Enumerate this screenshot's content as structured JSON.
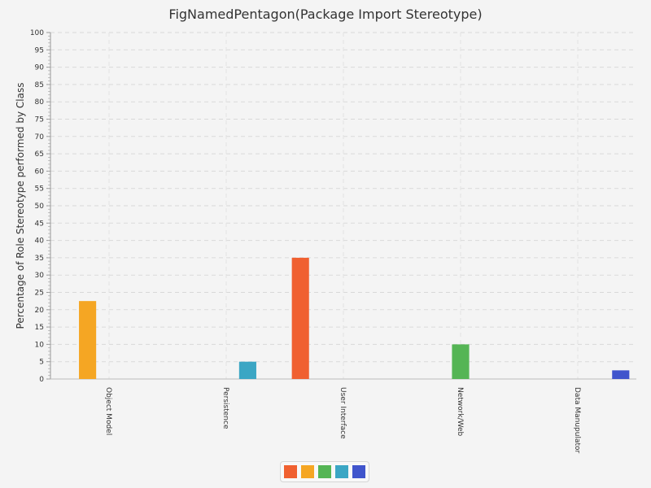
{
  "chart_data": {
    "type": "bar",
    "title": "FigNamedPentagon(Package Import Stereotype)",
    "xlabel": "",
    "ylabel": "Percentage of Role Stereotype performed by Class",
    "ylim": [
      0,
      100
    ],
    "ytick_step": 5,
    "grid": true,
    "legend_position": "bottom-center",
    "categories": [
      "Object Model",
      "Persistence",
      "User Interface",
      "Network/Web",
      "Data Manupulator"
    ],
    "series": [
      {
        "color": "#f06030",
        "values": [
          0,
          0,
          35,
          0,
          0
        ]
      },
      {
        "color": "#f5a623",
        "values": [
          22.5,
          0,
          0,
          0,
          0
        ]
      },
      {
        "color": "#55b555",
        "values": [
          0,
          0,
          0,
          10,
          0
        ]
      },
      {
        "color": "#3ba6c4",
        "values": [
          0,
          5,
          0,
          0,
          0
        ]
      },
      {
        "color": "#4055cc",
        "values": [
          0,
          0,
          0,
          0,
          2.5
        ]
      }
    ]
  }
}
